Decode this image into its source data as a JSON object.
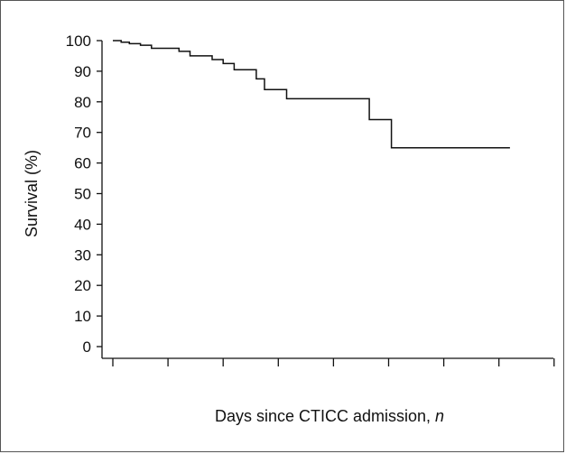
{
  "chart_data": {
    "type": "line",
    "title": "",
    "xlabel_text": "Days since CTICC admission, ",
    "xlabel_var": "n",
    "ylabel": "Survival (%)",
    "ylim": [
      0,
      100
    ],
    "yticks": [
      0,
      10,
      20,
      30,
      40,
      50,
      60,
      70,
      80,
      90,
      100
    ],
    "xlim": [
      0,
      8
    ],
    "xticks": [
      0,
      1,
      2,
      3,
      4,
      5,
      6,
      7,
      8
    ],
    "xtick_labels_shown": false,
    "grid": false,
    "legend": "none",
    "line_color": "#111111",
    "series": [
      {
        "step": "post",
        "points": [
          [
            0.0,
            100
          ],
          [
            0.15,
            99.5
          ],
          [
            0.3,
            99
          ],
          [
            0.5,
            98.5
          ],
          [
            0.7,
            97.5
          ],
          [
            1.2,
            96.5
          ],
          [
            1.4,
            95
          ],
          [
            1.8,
            93.8
          ],
          [
            2.0,
            92.5
          ],
          [
            2.2,
            90.5
          ],
          [
            2.6,
            87.5
          ],
          [
            2.75,
            84
          ],
          [
            3.15,
            81
          ],
          [
            4.65,
            74.2
          ],
          [
            5.05,
            65
          ],
          [
            7.2,
            65
          ]
        ]
      }
    ]
  }
}
